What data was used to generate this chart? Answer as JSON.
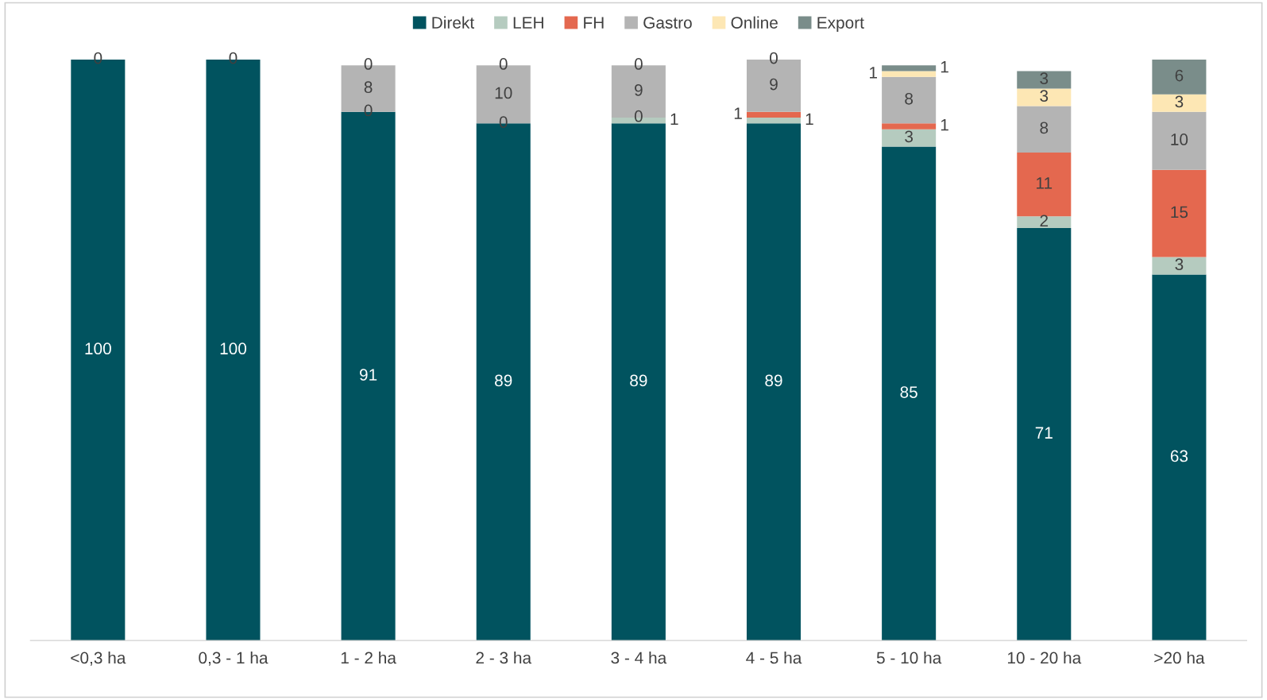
{
  "chart_data": {
    "type": "bar",
    "stacked": true,
    "legend": "top",
    "categories": [
      "<0,3 ha",
      "0,3 - 1 ha",
      "1 - 2 ha",
      "2 - 3 ha",
      "3 - 4 ha",
      "4 - 5 ha",
      "5 - 10 ha",
      "10 - 20 ha",
      ">20 ha"
    ],
    "series": [
      {
        "name": "Direkt",
        "color": "#01535f",
        "values": [
          100,
          100,
          91,
          89,
          89,
          89,
          85,
          71,
          63
        ],
        "value_labels": [
          "100",
          "100",
          "91",
          "89",
          "89",
          "89",
          "85",
          "71",
          "63"
        ]
      },
      {
        "name": "LEH",
        "color": "#b5cbbf",
        "values": [
          0,
          0,
          0,
          0,
          1,
          1,
          3,
          2,
          3
        ],
        "value_labels": [
          "0",
          "0",
          "0",
          "0",
          "1",
          "1",
          "3",
          "2",
          "3"
        ]
      },
      {
        "name": "FH",
        "color": "#e4684f",
        "values": [
          0,
          0,
          0,
          0,
          0,
          1,
          1,
          11,
          15
        ],
        "value_labels": [
          null,
          null,
          null,
          null,
          "0",
          "1",
          "1",
          "11",
          "15"
        ]
      },
      {
        "name": "Gastro",
        "color": "#b4b4b4",
        "values": [
          0,
          0,
          8,
          10,
          9,
          9,
          8,
          8,
          10
        ],
        "value_labels": [
          null,
          null,
          "8",
          "10",
          "9",
          "9",
          "8",
          "8",
          "10"
        ]
      },
      {
        "name": "Online",
        "color": "#fde7b4",
        "values": [
          0,
          0,
          0,
          0,
          0,
          0,
          1,
          3,
          3
        ],
        "value_labels": [
          null,
          null,
          "0",
          "0",
          "0",
          "0",
          "1",
          "3",
          "3"
        ]
      },
      {
        "name": "Export",
        "color": "#7a8d8a",
        "values": [
          0,
          0,
          0,
          0,
          0,
          0,
          1,
          3,
          6
        ],
        "value_labels": [
          null,
          null,
          null,
          null,
          null,
          null,
          "1",
          "3",
          "6"
        ]
      }
    ]
  }
}
